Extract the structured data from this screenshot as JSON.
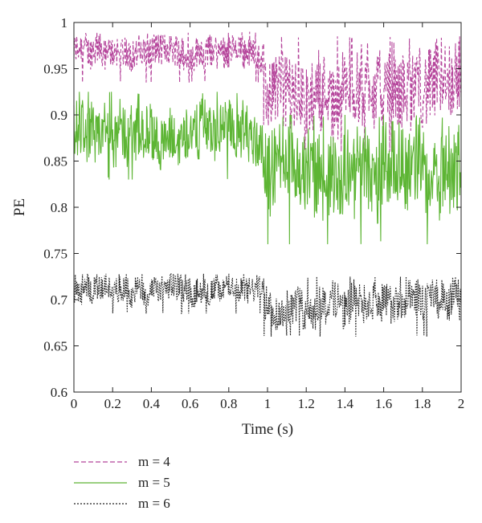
{
  "chart_data": {
    "type": "line",
    "title": "",
    "xlabel": "Time (s)",
    "ylabel": "PE",
    "xlim": [
      0,
      2
    ],
    "ylim": [
      0.6,
      1.0
    ],
    "xticks": [
      "0",
      "0.2",
      "0.4",
      "0.6",
      "0.8",
      "1",
      "1.2",
      "1.4",
      "1.6",
      "1.8",
      "2"
    ],
    "yticks": [
      "0.6",
      "0.65",
      "0.7",
      "0.75",
      "0.8",
      "0.85",
      "0.9",
      "0.95",
      "1"
    ],
    "grid": false,
    "legend_position": "bottom-left",
    "series": [
      {
        "name": "m = 4",
        "color": "#b5459b",
        "dash": "dashed",
        "segments": [
          {
            "x_range": [
              0,
              0.98
            ],
            "mean": 0.968,
            "min": 0.935,
            "max": 0.99
          },
          {
            "x_range": [
              0.98,
              2.0
            ],
            "mean": 0.925,
            "min": 0.86,
            "max": 0.985
          }
        ]
      },
      {
        "name": "m = 5",
        "color": "#5db534",
        "dash": "solid",
        "segments": [
          {
            "x_range": [
              0,
              0.98
            ],
            "mean": 0.88,
            "min": 0.83,
            "max": 0.925
          },
          {
            "x_range": [
              0.98,
              2.0
            ],
            "mean": 0.84,
            "min": 0.76,
            "max": 0.9
          }
        ]
      },
      {
        "name": "m = 6",
        "color": "#222222",
        "dash": "dotted",
        "segments": [
          {
            "x_range": [
              0,
              0.98
            ],
            "mean": 0.711,
            "min": 0.685,
            "max": 0.728
          },
          {
            "x_range": [
              0.98,
              2.0
            ],
            "mean": 0.697,
            "min": 0.66,
            "max": 0.725
          }
        ]
      }
    ]
  }
}
